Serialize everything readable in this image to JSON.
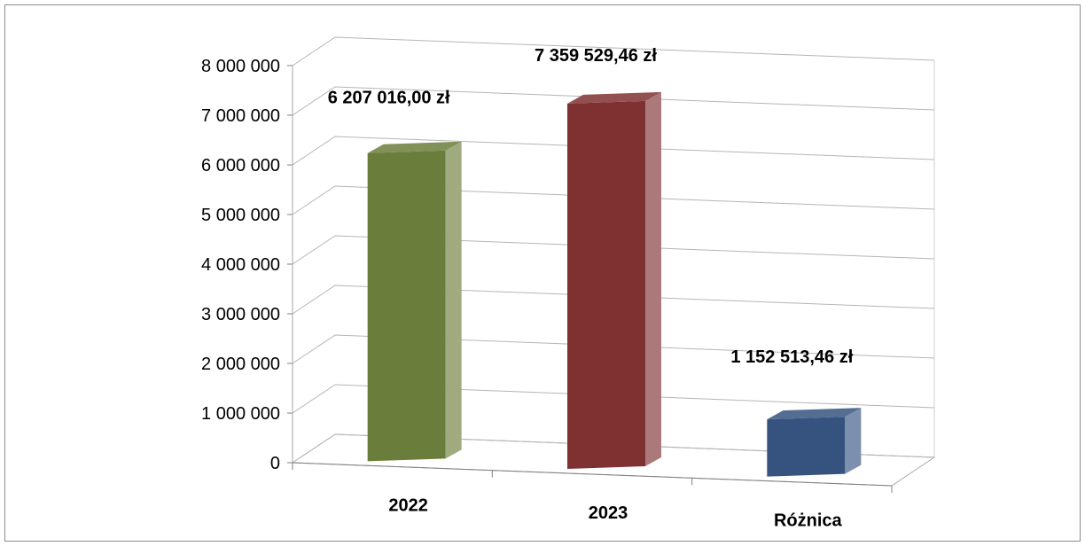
{
  "chart_data": {
    "type": "bar",
    "style": "3d-column",
    "categories": [
      "2022",
      "2023",
      "Różnica"
    ],
    "values": [
      6207016.0,
      7359529.46,
      1152513.46
    ],
    "data_labels": [
      "6 207 016,00 zł",
      "7 359 529,46 zł",
      "1 152 513,46 zł"
    ],
    "colors": [
      "#6b7d3a",
      "#7f3132",
      "#36537f"
    ],
    "ylim": [
      0,
      8000000
    ],
    "yticks": [
      0,
      1000000,
      2000000,
      3000000,
      4000000,
      5000000,
      6000000,
      7000000,
      8000000
    ],
    "ytick_labels": [
      "0",
      "1 000 000",
      "2 000 000",
      "3 000 000",
      "4 000 000",
      "5 000 000",
      "6 000 000",
      "7 000 000",
      "8 000 000"
    ],
    "grid": true,
    "legend": "none"
  }
}
